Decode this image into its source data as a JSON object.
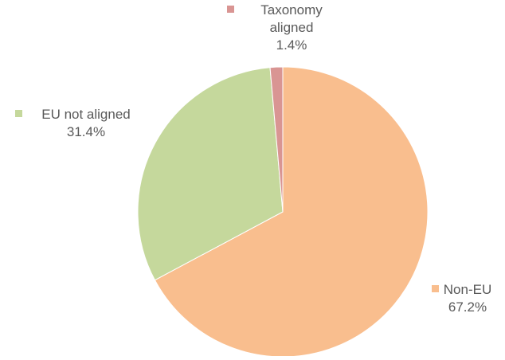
{
  "chart_data": {
    "type": "pie",
    "title": "",
    "series": [
      {
        "slices": [
          {
            "label": "Non-EU",
            "label_lines": [
              "Non-EU"
            ],
            "value": 67.2,
            "value_label": "67.2%",
            "color": "#f9be8e"
          },
          {
            "label": "EU not aligned",
            "label_lines": [
              "EU not aligned"
            ],
            "value": 31.4,
            "value_label": "31.4%",
            "color": "#c5d89c"
          },
          {
            "label": "Taxonomy aligned",
            "label_lines": [
              "Taxonomy",
              "aligned"
            ],
            "value": 1.4,
            "value_label": "1.4%",
            "color": "#d99593"
          }
        ]
      }
    ],
    "start_angle_deg": 0,
    "direction": "clockwise",
    "legend": "data labels with color markers beside each slice"
  }
}
